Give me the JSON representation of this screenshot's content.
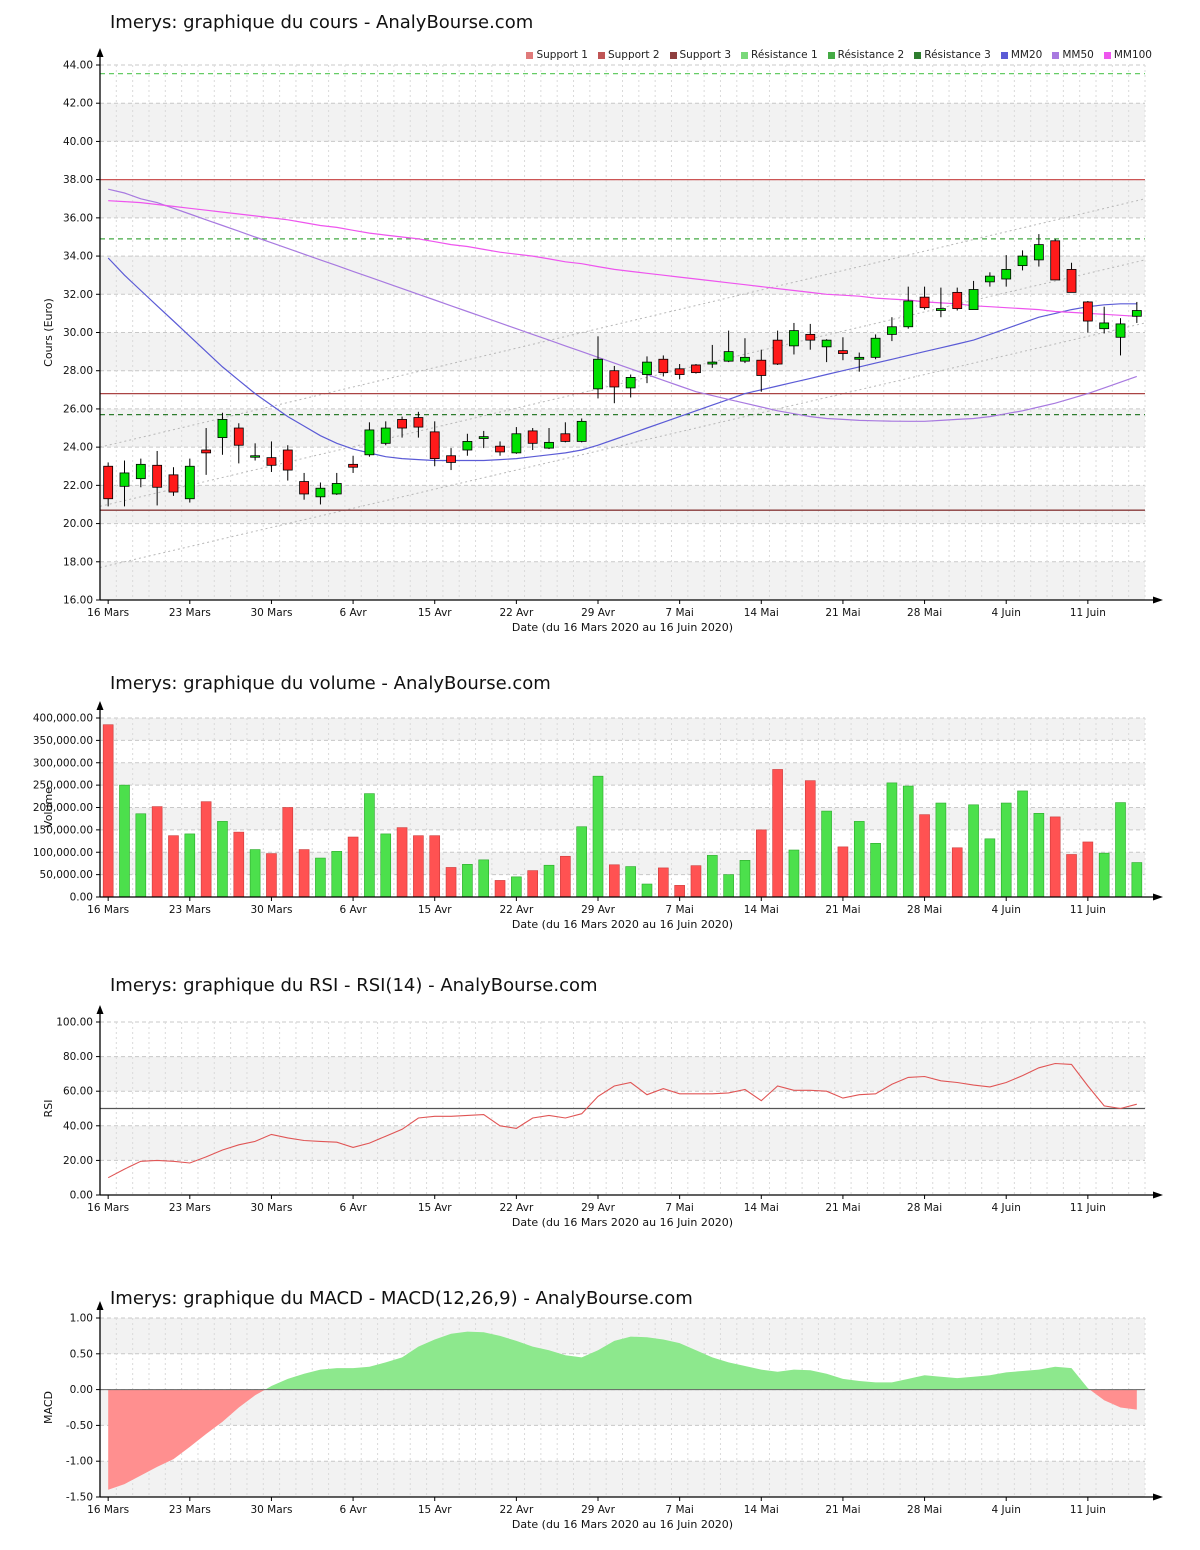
{
  "site": "AnalyBourse.com",
  "instrument": "Imerys",
  "xticks": [
    {
      "index": 0,
      "label": "16 Mars"
    },
    {
      "index": 5,
      "label": "23 Mars"
    },
    {
      "index": 10,
      "label": "30 Mars"
    },
    {
      "index": 15,
      "label": "6 Avr"
    },
    {
      "index": 20,
      "label": "15 Avr"
    },
    {
      "index": 25,
      "label": "22 Avr"
    },
    {
      "index": 30,
      "label": "29 Avr"
    },
    {
      "index": 35,
      "label": "7 Mai"
    },
    {
      "index": 40,
      "label": "14 Mai"
    },
    {
      "index": 45,
      "label": "21 Mai"
    },
    {
      "index": 50,
      "label": "28 Mai"
    },
    {
      "index": 55,
      "label": "4 Juin"
    },
    {
      "index": 60,
      "label": "11 Juin"
    }
  ],
  "legend": [
    {
      "label": "Support 1",
      "color": "#e07a7a"
    },
    {
      "label": "Support 2",
      "color": "#c05555"
    },
    {
      "label": "Support 3",
      "color": "#8f3f3f"
    },
    {
      "label": "Résistance 1",
      "color": "#79d879"
    },
    {
      "label": "Résistance 2",
      "color": "#44aa44"
    },
    {
      "label": "Résistance 3",
      "color": "#2e7d2e"
    },
    {
      "label": "MM20",
      "color": "#5b5bd6"
    },
    {
      "label": "MM50",
      "color": "#a87ae0"
    },
    {
      "label": "MM100",
      "color": "#ee55ee"
    }
  ],
  "chart_data": [
    {
      "id": "cours",
      "type": "candlestick",
      "title": "Imerys: graphique du cours - AnalyBourse.com",
      "ylabel": "Cours (Euro)",
      "xlabel": "Date (du 16 Mars 2020 au 16 Juin 2020)",
      "ylim": [
        16,
        44
      ],
      "ytick_step": 2,
      "stripe_offset": 0,
      "up_color": "#00e000",
      "down_color": "#ff1a1a",
      "ohlc": [
        [
          23.0,
          23.2,
          20.9,
          21.3
        ],
        [
          21.95,
          23.3,
          20.9,
          22.65
        ],
        [
          22.35,
          23.4,
          21.9,
          23.1
        ],
        [
          23.05,
          23.8,
          20.95,
          21.9
        ],
        [
          22.55,
          22.95,
          21.45,
          21.65
        ],
        [
          21.3,
          23.4,
          21.1,
          23.0
        ],
        [
          23.85,
          25.0,
          22.55,
          23.7
        ],
        [
          24.5,
          25.8,
          23.6,
          25.45
        ],
        [
          25.0,
          25.25,
          23.15,
          24.1
        ],
        [
          23.5,
          24.2,
          23.3,
          23.55
        ],
        [
          23.45,
          24.3,
          22.7,
          23.05
        ],
        [
          23.85,
          24.1,
          22.25,
          22.8
        ],
        [
          22.2,
          22.65,
          21.25,
          21.55
        ],
        [
          21.4,
          22.15,
          21.0,
          21.85
        ],
        [
          21.55,
          22.65,
          21.5,
          22.1
        ],
        [
          23.1,
          23.55,
          22.65,
          22.95
        ],
        [
          23.6,
          25.3,
          23.5,
          24.9
        ],
        [
          24.2,
          25.35,
          24.1,
          25.0
        ],
        [
          25.45,
          25.6,
          24.5,
          25.0
        ],
        [
          25.55,
          25.85,
          24.5,
          25.05
        ],
        [
          24.8,
          25.35,
          23.0,
          23.4
        ],
        [
          23.55,
          23.95,
          22.8,
          23.2
        ],
        [
          23.85,
          24.7,
          23.55,
          24.3
        ],
        [
          24.45,
          24.85,
          23.95,
          24.55
        ],
        [
          24.05,
          24.3,
          23.55,
          23.75
        ],
        [
          23.7,
          25.05,
          23.65,
          24.7
        ],
        [
          24.85,
          25.0,
          23.85,
          24.2
        ],
        [
          23.95,
          25.0,
          23.9,
          24.25
        ],
        [
          24.7,
          25.3,
          24.25,
          24.3
        ],
        [
          24.3,
          25.5,
          24.25,
          25.35
        ],
        [
          27.05,
          29.8,
          26.55,
          28.6
        ],
        [
          28.0,
          28.25,
          26.3,
          27.15
        ],
        [
          27.1,
          27.8,
          26.6,
          27.65
        ],
        [
          27.8,
          28.75,
          27.35,
          28.45
        ],
        [
          28.6,
          28.8,
          27.7,
          27.9
        ],
        [
          28.1,
          28.35,
          27.55,
          27.8
        ],
        [
          28.3,
          28.35,
          27.85,
          27.9
        ],
        [
          28.35,
          29.35,
          28.15,
          28.45
        ],
        [
          28.5,
          30.1,
          28.45,
          29.0
        ],
        [
          28.5,
          29.7,
          28.4,
          28.7
        ],
        [
          28.55,
          29.1,
          26.9,
          27.75
        ],
        [
          29.6,
          30.1,
          28.3,
          28.35
        ],
        [
          29.3,
          30.5,
          28.85,
          30.1
        ],
        [
          29.9,
          30.45,
          29.1,
          29.6
        ],
        [
          29.25,
          29.65,
          28.45,
          29.6
        ],
        [
          29.05,
          29.75,
          28.55,
          28.9
        ],
        [
          28.6,
          28.95,
          27.95,
          28.7
        ],
        [
          28.7,
          29.9,
          28.6,
          29.7
        ],
        [
          29.9,
          30.8,
          29.55,
          30.3
        ],
        [
          30.3,
          32.4,
          30.2,
          31.65
        ],
        [
          31.85,
          32.4,
          31.2,
          31.3
        ],
        [
          31.15,
          32.35,
          30.8,
          31.25
        ],
        [
          32.1,
          32.35,
          31.15,
          31.25
        ],
        [
          31.2,
          32.7,
          31.2,
          32.25
        ],
        [
          32.65,
          33.15,
          32.4,
          32.95
        ],
        [
          32.8,
          34.05,
          32.4,
          33.3
        ],
        [
          33.5,
          34.3,
          33.25,
          34.0
        ],
        [
          33.8,
          35.15,
          33.45,
          34.6
        ],
        [
          34.8,
          34.9,
          32.75,
          32.75
        ],
        [
          33.3,
          33.65,
          32.1,
          32.1
        ],
        [
          31.6,
          31.65,
          30.0,
          30.6
        ],
        [
          30.2,
          31.35,
          29.95,
          30.5
        ],
        [
          29.75,
          30.75,
          28.8,
          30.45
        ],
        [
          30.85,
          31.6,
          30.5,
          31.15
        ]
      ],
      "series": [
        {
          "name": "MM20",
          "color": "#5b5bd6",
          "values": [
            33.9,
            33.0,
            32.2,
            31.4,
            30.6,
            29.8,
            29.0,
            28.2,
            27.5,
            26.8,
            26.2,
            25.6,
            25.1,
            24.6,
            24.2,
            23.9,
            23.7,
            23.5,
            23.4,
            23.35,
            23.3,
            23.3,
            23.3,
            23.3,
            23.35,
            23.4,
            23.5,
            23.6,
            23.7,
            23.85,
            24.1,
            24.4,
            24.7,
            25.0,
            25.3,
            25.6,
            25.9,
            26.2,
            26.5,
            26.8,
            27.0,
            27.2,
            27.4,
            27.6,
            27.8,
            28.0,
            28.2,
            28.4,
            28.6,
            28.8,
            29.0,
            29.2,
            29.4,
            29.6,
            29.9,
            30.2,
            30.5,
            30.8,
            31.0,
            31.2,
            31.35,
            31.45,
            31.5,
            31.5
          ]
        },
        {
          "name": "MM50",
          "color": "#a87ae0",
          "values": [
            37.5,
            37.3,
            37.0,
            36.8,
            36.5,
            36.2,
            35.9,
            35.6,
            35.3,
            35.0,
            34.7,
            34.4,
            34.1,
            33.8,
            33.5,
            33.2,
            32.9,
            32.6,
            32.3,
            32.0,
            31.7,
            31.4,
            31.1,
            30.8,
            30.5,
            30.2,
            29.9,
            29.6,
            29.3,
            29.0,
            28.7,
            28.4,
            28.1,
            27.8,
            27.5,
            27.2,
            26.9,
            26.7,
            26.5,
            26.3,
            26.1,
            25.9,
            25.75,
            25.6,
            25.5,
            25.45,
            25.4,
            25.38,
            25.36,
            25.35,
            25.35,
            25.4,
            25.45,
            25.5,
            25.6,
            25.75,
            25.9,
            26.1,
            26.3,
            26.55,
            26.8,
            27.1,
            27.4,
            27.7
          ]
        },
        {
          "name": "MM100",
          "color": "#ee55ee",
          "values": [
            36.9,
            36.85,
            36.8,
            36.7,
            36.6,
            36.5,
            36.4,
            36.3,
            36.2,
            36.1,
            36.0,
            35.9,
            35.75,
            35.6,
            35.5,
            35.35,
            35.2,
            35.1,
            35.0,
            34.9,
            34.75,
            34.6,
            34.5,
            34.35,
            34.2,
            34.1,
            34.0,
            33.85,
            33.7,
            33.6,
            33.45,
            33.3,
            33.2,
            33.1,
            33.0,
            32.9,
            32.8,
            32.7,
            32.6,
            32.5,
            32.4,
            32.3,
            32.2,
            32.1,
            32.0,
            31.95,
            31.9,
            31.8,
            31.75,
            31.7,
            31.6,
            31.55,
            31.5,
            31.4,
            31.35,
            31.3,
            31.25,
            31.2,
            31.1,
            31.05,
            31.0,
            30.95,
            30.9,
            30.85
          ]
        }
      ],
      "levels": [
        {
          "name": "Support 1",
          "value": 38.0,
          "color": "#cc5555",
          "style": "solid"
        },
        {
          "name": "Support 2",
          "value": 26.8,
          "color": "#aa4444",
          "style": "solid"
        },
        {
          "name": "Support 3",
          "value": 20.7,
          "color": "#883a3a",
          "style": "solid"
        },
        {
          "name": "Résistance 1",
          "value": 43.55,
          "color": "#66cc66",
          "style": "dashed"
        },
        {
          "name": "Résistance 2",
          "value": 34.9,
          "color": "#44aa44",
          "style": "dashed"
        },
        {
          "name": "Résistance 3",
          "value": 25.7,
          "color": "#2e7d2e",
          "style": "dashed"
        }
      ],
      "channel": [
        {
          "from": 17.7,
          "to": 30.5
        },
        {
          "from": 20.9,
          "to": 33.8
        },
        {
          "from": 24.0,
          "to": 37.0
        }
      ]
    },
    {
      "id": "volume",
      "type": "bar",
      "title": "Imerys: graphique du volume - AnalyBourse.com",
      "ylabel": "Volume",
      "xlabel": "Date (du 16 Mars 2020 au 16 Juin 2020)",
      "ylim": [
        0,
        400000
      ],
      "ytick_step": 50000,
      "stripe_offset": 1,
      "values": [
        385000,
        250000,
        186000,
        202000,
        137000,
        141000,
        213000,
        169000,
        145000,
        106000,
        97000,
        200000,
        106000,
        87000,
        102000,
        134000,
        231000,
        141000,
        155000,
        137000,
        137000,
        66000,
        73000,
        83000,
        37000,
        45000,
        59000,
        71000,
        91000,
        157000,
        270000,
        72000,
        68000,
        29000,
        65000,
        26000,
        70000,
        93000,
        50000,
        82000,
        150000,
        285000,
        105000,
        260000,
        192000,
        112000,
        169000,
        120000,
        255000,
        248000,
        184000,
        210000,
        110000,
        206000,
        130000,
        210000,
        237000,
        187000,
        179000,
        95000,
        123000,
        98000,
        211000,
        77000
      ]
    },
    {
      "id": "rsi",
      "type": "line",
      "title": "Imerys: graphique du RSI - RSI(14) - AnalyBourse.com",
      "ylabel": "RSI",
      "xlabel": "Date (du 16 Mars 2020 au 16 Juin 2020)",
      "ylim": [
        0,
        100
      ],
      "ytick_step": 20,
      "stripe_offset": 1,
      "baseline": 50,
      "color": "#e05555",
      "values": [
        10,
        15,
        19.5,
        20,
        19.5,
        18.5,
        22,
        26,
        29,
        31,
        35,
        33,
        31.5,
        31,
        30.5,
        27.5,
        30,
        34,
        38,
        44.5,
        45.5,
        45.5,
        46,
        46.5,
        40,
        38.5,
        44.5,
        46,
        44.5,
        47,
        57,
        63,
        65,
        58,
        61.5,
        58.5,
        58.5,
        58.5,
        59,
        61,
        54.5,
        63,
        60.5,
        60.5,
        60,
        56,
        58,
        58.5,
        64,
        68,
        68.5,
        66,
        65,
        63.5,
        62.5,
        65,
        69,
        73.5,
        76,
        75.5,
        63,
        51.5,
        50,
        52.5
      ]
    },
    {
      "id": "macd",
      "type": "area",
      "title": "Imerys: graphique du MACD - MACD(12,26,9) - AnalyBourse.com",
      "ylabel": "MACD",
      "xlabel": "Date (du 16 Mars 2020 au 16 Juin 2020)",
      "ylim": [
        -1.5,
        1.0
      ],
      "ytick_step": 0.5,
      "stripe_offset": 0,
      "baseline": 0,
      "pos_color": "#8de88d",
      "neg_color": "#ff8f8f",
      "values": [
        -1.4,
        -1.32,
        -1.2,
        -1.08,
        -0.97,
        -0.8,
        -0.62,
        -0.45,
        -0.25,
        -0.08,
        0.05,
        0.15,
        0.22,
        0.28,
        0.3,
        0.3,
        0.32,
        0.38,
        0.45,
        0.6,
        0.7,
        0.78,
        0.81,
        0.8,
        0.75,
        0.68,
        0.6,
        0.55,
        0.48,
        0.45,
        0.55,
        0.68,
        0.74,
        0.73,
        0.7,
        0.65,
        0.55,
        0.45,
        0.38,
        0.33,
        0.28,
        0.25,
        0.28,
        0.27,
        0.22,
        0.15,
        0.12,
        0.1,
        0.1,
        0.15,
        0.2,
        0.18,
        0.16,
        0.18,
        0.2,
        0.24,
        0.26,
        0.28,
        0.32,
        0.3,
        0.02,
        -0.15,
        -0.25,
        -0.28
      ]
    }
  ]
}
